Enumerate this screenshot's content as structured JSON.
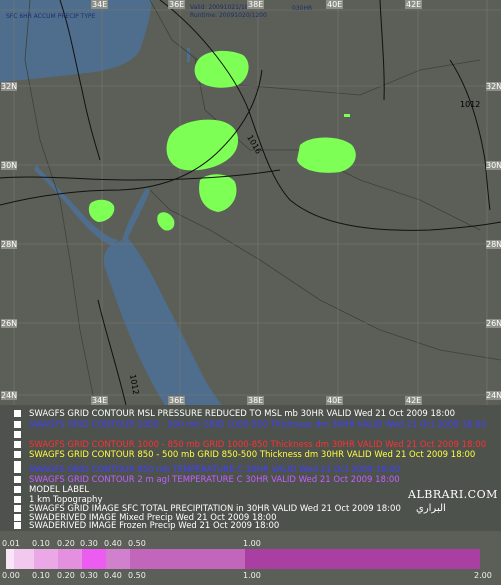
{
  "map": {
    "header_lines": [
      "SFC 6HR ACCUM PRECIP TYPE",
      "Valid: 20091021/1800",
      "Runtime: 20091020/1200",
      "030HR"
    ],
    "lon_labels": [
      "34E",
      "36E",
      "38E",
      "40E",
      "42E"
    ],
    "lat_labels": [
      "32N",
      "30N",
      "28N",
      "26N",
      "24N"
    ],
    "isobar_labels": [
      "1016",
      "1012",
      "1012"
    ],
    "colors": {
      "land": "#5b5f58",
      "water": "#4f6d8c",
      "precip": "#7dff55"
    }
  },
  "legend": {
    "layers": [
      {
        "text": "SWAGFS GRID CONTOUR MSL PRESSURE REDUCED TO MSL mb 30HR VALID Wed 21 Oct 2009 18:00",
        "color": "#ffffff"
      },
      {
        "text": "SWAGFS GRID CONTOUR 1000 - 500 mb GRID 1000-500 Thickness dm 30HR VALID Wed 21 Oct 2009 18:00",
        "color": "#4040ff"
      },
      {
        "text": "",
        "color": "#ffffff"
      },
      {
        "text": "SWAGFS GRID CONTOUR 1000 - 850 mb GRID 1000-850 Thickness dm 30HR VALID Wed 21 Oct 2009 18:00",
        "color": "#ff3030"
      },
      {
        "text": "SWAGFS GRID CONTOUR 850 - 500 mb GRID 850-500 Thickness dm 30HR VALID Wed 21 Oct 2009 18:00",
        "color": "#ffff40"
      },
      {
        "text": "",
        "color": "#40ff40"
      },
      {
        "text": "SWAGFS GRID CONTOUR 850 mb TEMPERATURE C 30HR VALID Wed 21 Oct 2009 18:00",
        "color": "#4040ff"
      },
      {
        "text": "SWAGFS GRID CONTOUR 2 m agl TEMPERATURE C 30HR VALID Wed 21 Oct 2009 18:00",
        "color": "#c060ff"
      },
      {
        "text": "MODEL LABEL",
        "color": "#ffffff"
      },
      {
        "text": "1 km Topography",
        "color": "#ffffff"
      },
      {
        "text": "SWAGFS GRID IMAGE SFC TOTAL PRECIPITATION in 30HR VALID Wed 21 Oct 2009 18:00",
        "color": "#ffffff"
      },
      {
        "text": "SWADERIVED IMAGE Mixed Precip Wed 21 Oct 2009 18:00",
        "color": "#ffffff"
      },
      {
        "text": "SWADERIVED IMAGE Frozen Precip Wed 21 Oct 2009 18:00",
        "color": "#ffffff"
      }
    ],
    "watermark": "ALBRARI.COM",
    "watermark_ar": "البراري"
  },
  "scale": {
    "top_labels": [
      "0.01",
      "0.10",
      "0.20",
      "0.30",
      "0.40",
      "0.50",
      "1.00"
    ],
    "bottom_labels": [
      "0.00",
      "0.10",
      "0.20",
      "0.30",
      "0.40",
      "0.50",
      "1.00",
      "2.00"
    ]
  }
}
